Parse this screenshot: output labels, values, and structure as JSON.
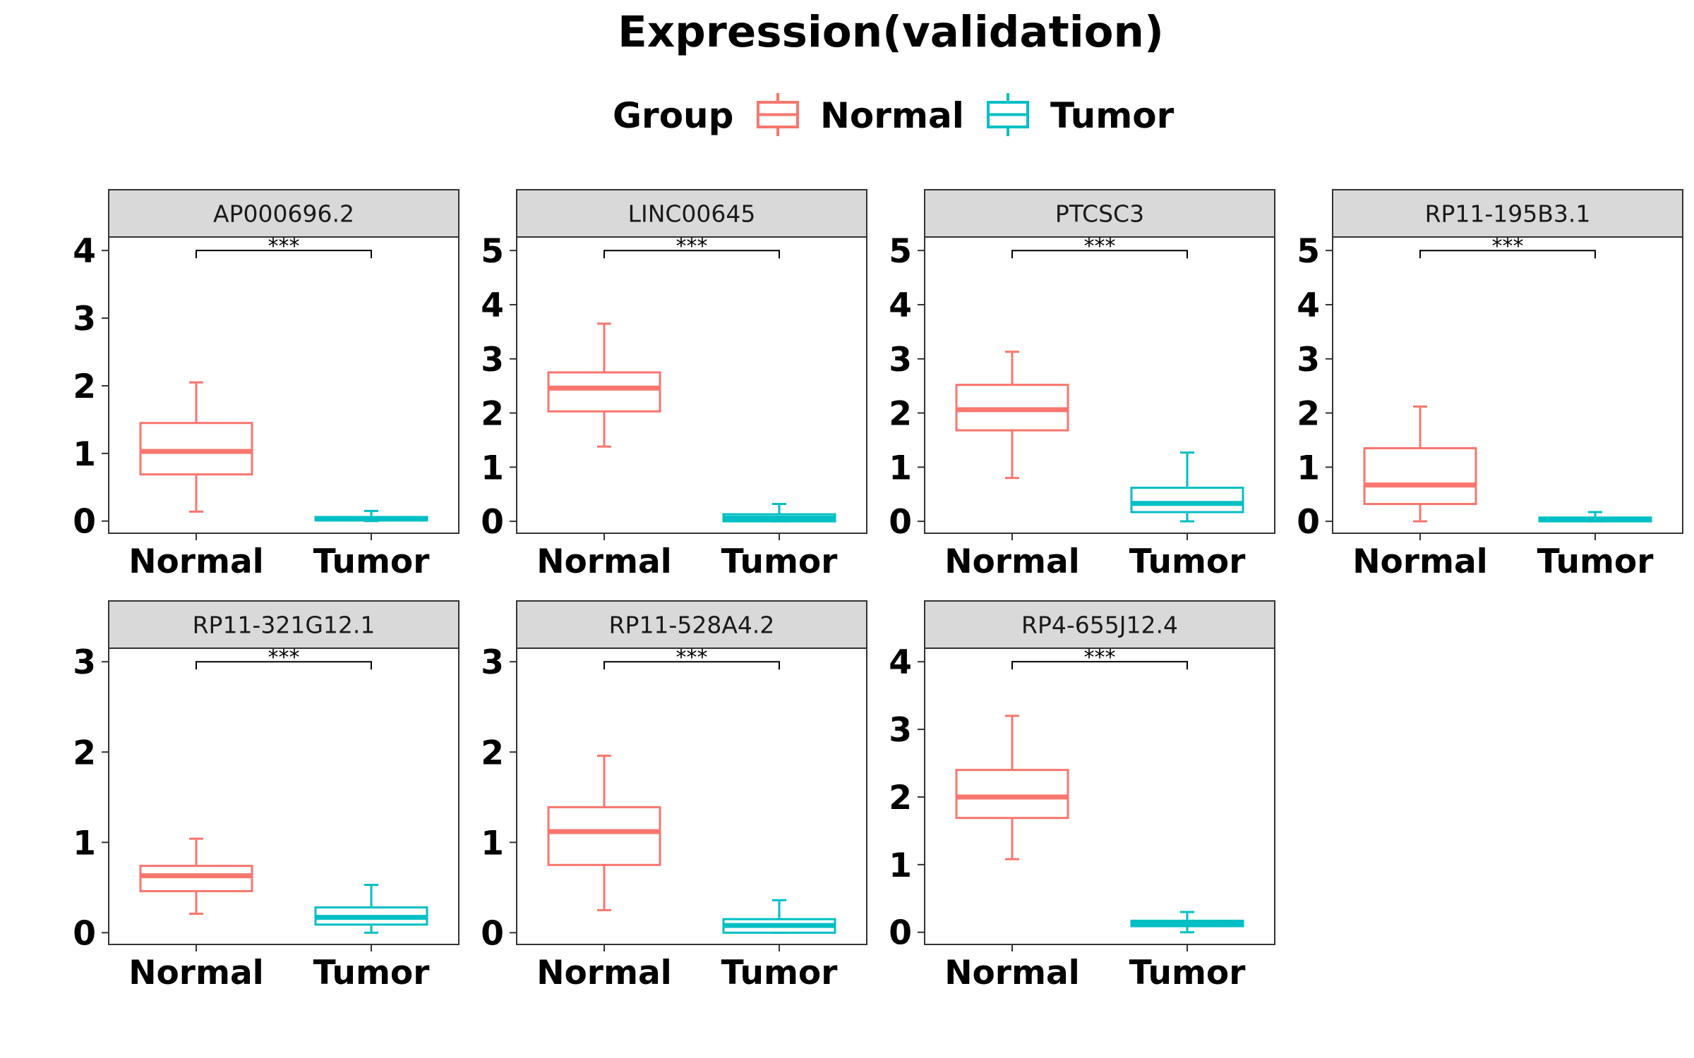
{
  "chart_data": {
    "type": "boxplot",
    "title": "Expression(validation)",
    "legend": {
      "title": "Group",
      "position": "top",
      "entries": [
        {
          "name": "Normal",
          "color": "#F8766D"
        },
        {
          "name": "Tumor",
          "color": "#00BFC4"
        }
      ]
    },
    "categories": [
      "Normal",
      "Tumor"
    ],
    "grid": false,
    "facets": [
      {
        "name": "AP000696.2",
        "ylim": [
          -0.18,
          4.2
        ],
        "yticks": [
          0,
          1,
          2,
          3,
          4
        ],
        "boxes": [
          {
            "group": "Normal",
            "min": 0.14,
            "q1": 0.69,
            "median": 1.03,
            "q3": 1.45,
            "max": 2.05
          },
          {
            "group": "Tumor",
            "min": 0.0,
            "q1": 0.01,
            "median": 0.03,
            "q3": 0.06,
            "max": 0.15
          }
        ],
        "significance": {
          "label": "***",
          "y": 4.0
        }
      },
      {
        "name": "LINC00645",
        "ylim": [
          -0.22,
          5.25
        ],
        "yticks": [
          0,
          1,
          2,
          3,
          4,
          5
        ],
        "boxes": [
          {
            "group": "Normal",
            "min": 1.38,
            "q1": 2.03,
            "median": 2.46,
            "q3": 2.75,
            "max": 3.65
          },
          {
            "group": "Tumor",
            "min": 0.0,
            "q1": 0.0,
            "median": 0.06,
            "q3": 0.13,
            "max": 0.32
          }
        ],
        "significance": {
          "label": "***",
          "y": 5.0
        }
      },
      {
        "name": "PTCSC3",
        "ylim": [
          -0.22,
          5.25
        ],
        "yticks": [
          0,
          1,
          2,
          3,
          4,
          5
        ],
        "boxes": [
          {
            "group": "Normal",
            "min": 0.8,
            "q1": 1.68,
            "median": 2.06,
            "q3": 2.52,
            "max": 3.13
          },
          {
            "group": "Tumor",
            "min": 0.0,
            "q1": 0.17,
            "median": 0.33,
            "q3": 0.62,
            "max": 1.27
          }
        ],
        "significance": {
          "label": "***",
          "y": 5.0
        }
      },
      {
        "name": "RP11-195B3.1",
        "ylim": [
          -0.22,
          5.25
        ],
        "yticks": [
          0,
          1,
          2,
          3,
          4,
          5
        ],
        "boxes": [
          {
            "group": "Normal",
            "min": 0.0,
            "q1": 0.32,
            "median": 0.67,
            "q3": 1.35,
            "max": 2.12
          },
          {
            "group": "Tumor",
            "min": 0.0,
            "q1": 0.0,
            "median": 0.03,
            "q3": 0.07,
            "max": 0.17
          }
        ],
        "significance": {
          "label": "***",
          "y": 5.0
        }
      },
      {
        "name": "RP11-321G12.1",
        "ylim": [
          -0.13,
          3.15
        ],
        "yticks": [
          0,
          1,
          2,
          3
        ],
        "boxes": [
          {
            "group": "Normal",
            "min": 0.21,
            "q1": 0.46,
            "median": 0.63,
            "q3": 0.74,
            "max": 1.04
          },
          {
            "group": "Tumor",
            "min": 0.0,
            "q1": 0.09,
            "median": 0.17,
            "q3": 0.28,
            "max": 0.53
          }
        ],
        "significance": {
          "label": "***",
          "y": 3.0
        }
      },
      {
        "name": "RP11-528A4.2",
        "ylim": [
          -0.13,
          3.15
        ],
        "yticks": [
          0,
          1,
          2,
          3
        ],
        "boxes": [
          {
            "group": "Normal",
            "min": 0.25,
            "q1": 0.75,
            "median": 1.12,
            "q3": 1.39,
            "max": 1.96
          },
          {
            "group": "Tumor",
            "min": 0.0,
            "q1": 0.0,
            "median": 0.08,
            "q3": 0.15,
            "max": 0.36
          }
        ],
        "significance": {
          "label": "***",
          "y": 3.0
        }
      },
      {
        "name": "RP4-655J12.4",
        "ylim": [
          -0.18,
          4.2
        ],
        "yticks": [
          0,
          1,
          2,
          3,
          4
        ],
        "boxes": [
          {
            "group": "Normal",
            "min": 1.08,
            "q1": 1.69,
            "median": 2.0,
            "q3": 2.4,
            "max": 3.2
          },
          {
            "group": "Tumor",
            "min": 0.0,
            "q1": 0.09,
            "median": 0.13,
            "q3": 0.17,
            "max": 0.3
          }
        ],
        "significance": {
          "label": "***",
          "y": 4.0
        }
      }
    ]
  }
}
